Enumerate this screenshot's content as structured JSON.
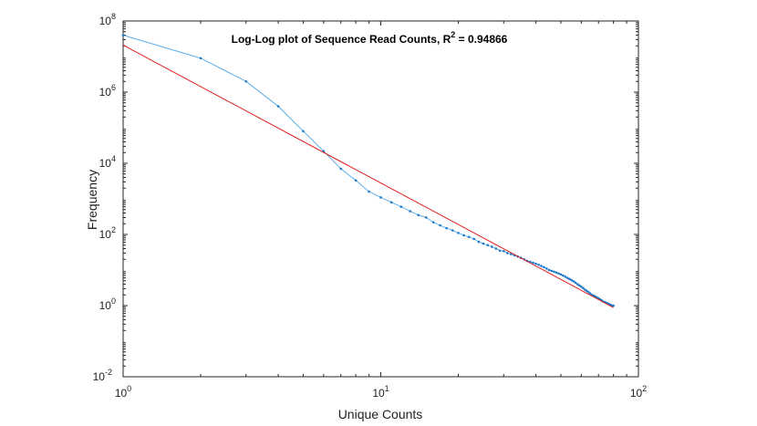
{
  "chart_data": {
    "type": "line",
    "title": "Log-Log plot of Sequence Read Counts, R",
    "title_superscript": "2",
    "title_suffix": " = 0.94866",
    "xlabel": "Unique Counts",
    "ylabel": "Frequency",
    "x_scale": "log",
    "y_scale": "log",
    "xlim": [
      1,
      100
    ],
    "ylim": [
      0.01,
      100000000
    ],
    "x_ticks": [
      {
        "base": "10",
        "exp": "0",
        "value": 1
      },
      {
        "base": "10",
        "exp": "1",
        "value": 10
      },
      {
        "base": "10",
        "exp": "2",
        "value": 100
      }
    ],
    "y_ticks": [
      {
        "base": "10",
        "exp": "-2",
        "value": 0.01
      },
      {
        "base": "10",
        "exp": "0",
        "value": 1
      },
      {
        "base": "10",
        "exp": "2",
        "value": 100
      },
      {
        "base": "10",
        "exp": "4",
        "value": 10000
      },
      {
        "base": "10",
        "exp": "6",
        "value": 1000000
      },
      {
        "base": "10",
        "exp": "8",
        "value": 100000000
      }
    ],
    "grid": false,
    "series": [
      {
        "color": "#4da6e6",
        "marker": "dot",
        "x": [
          1,
          2,
          3,
          4,
          5,
          6,
          7,
          8,
          9,
          10,
          11,
          12,
          13,
          14,
          15,
          16,
          17,
          18,
          19,
          20,
          21,
          22,
          23,
          24,
          25,
          26,
          27,
          28,
          29,
          30,
          31,
          32,
          33,
          34,
          35,
          36,
          37,
          38,
          39,
          40,
          41,
          42,
          43,
          44,
          45,
          46,
          47,
          48,
          49,
          50,
          51,
          52,
          53,
          54,
          55,
          56,
          57,
          58,
          59,
          60,
          61,
          62,
          63,
          64,
          65,
          66,
          67,
          68,
          69,
          70,
          71,
          72,
          73,
          74,
          75,
          76,
          77,
          78,
          79,
          80
        ],
        "y": [
          40000000,
          9000000,
          2000000,
          400000,
          80000,
          22000,
          7000,
          3300,
          1600,
          1100,
          800,
          600,
          450,
          350,
          300,
          220,
          180,
          150,
          130,
          110,
          95,
          85,
          75,
          62,
          55,
          50,
          45,
          40,
          35,
          34,
          30,
          28,
          26,
          24,
          22,
          20,
          18,
          17,
          16,
          15,
          14,
          13,
          12,
          11,
          10,
          9.5,
          9,
          8.5,
          8,
          7.5,
          7,
          6.5,
          6,
          5.6,
          5.2,
          4.8,
          4.4,
          4,
          3.7,
          3.4,
          3.1,
          2.8,
          2.6,
          2.4,
          2.2,
          2,
          1.9,
          1.8,
          1.7,
          1.6,
          1.5,
          1.4,
          1.3,
          1.25,
          1.2,
          1.15,
          1.1,
          1.05,
          1.0,
          1.0
        ]
      },
      {
        "color": "#e02020",
        "marker": "none",
        "x": [
          1,
          80
        ],
        "y": [
          21000000,
          0.88
        ]
      }
    ]
  }
}
